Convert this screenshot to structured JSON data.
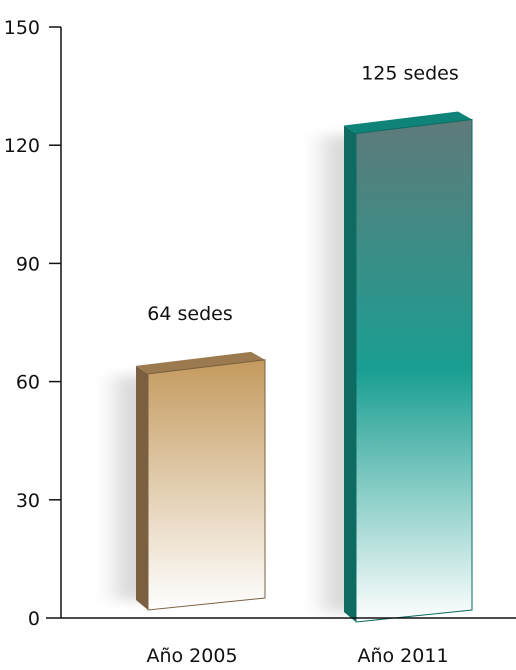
{
  "chart_data": {
    "type": "bar",
    "title": "",
    "xlabel": "",
    "ylabel": "",
    "ylim": [
      0,
      150
    ],
    "yticks": [
      0,
      30,
      60,
      90,
      120,
      150
    ],
    "grid": false,
    "categories": [
      "Año 2005",
      "Año 2011"
    ],
    "values": [
      64,
      125
    ],
    "data_labels": [
      "64 sedes",
      "125 sedes"
    ],
    "style": "3d-box",
    "colors": {
      "bar_2005_top": "#c49a5e",
      "bar_2005_side": "#7a6040",
      "bar_2005_lid": "#9a7a4e",
      "bar_2011_top": "#5f7a7a",
      "bar_2011_mid": "#1a9e92",
      "bar_2011_side": "#0e6b62",
      "bar_2011_lid": "#0f8378",
      "axis": "#111111"
    }
  }
}
